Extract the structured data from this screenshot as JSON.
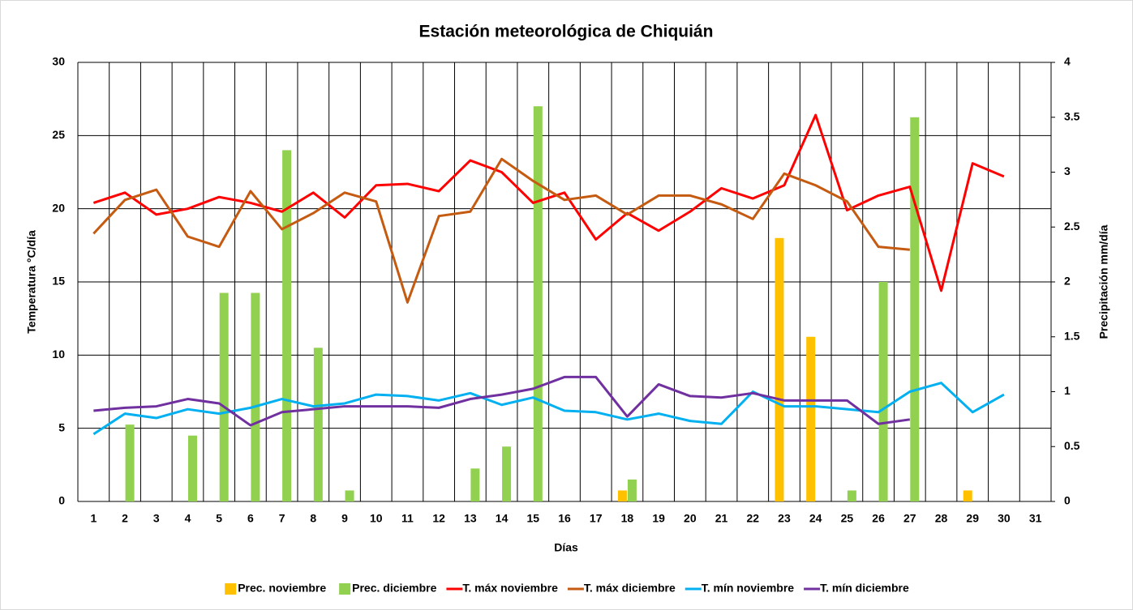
{
  "chart_data": {
    "type": "combo",
    "title": "Estación meteorológica de Chiquián",
    "x_label": "Días",
    "y_label": "Temperatura °C/día",
    "y2_label": "Precipitación mm/día",
    "categories": [
      "1",
      "2",
      "3",
      "4",
      "5",
      "6",
      "7",
      "8",
      "9",
      "10",
      "11",
      "12",
      "13",
      "14",
      "15",
      "16",
      "17",
      "18",
      "19",
      "20",
      "21",
      "22",
      "23",
      "24",
      "25",
      "26",
      "27",
      "28",
      "29",
      "30",
      "31"
    ],
    "ylim": [
      0,
      30
    ],
    "yticks": [
      0,
      5,
      10,
      15,
      20,
      25,
      30
    ],
    "y2lim": [
      0,
      4
    ],
    "y2ticks": [
      0,
      0.5,
      1,
      1.5,
      2,
      2.5,
      3,
      3.5,
      4
    ],
    "grid": true,
    "legend": "bottom",
    "series": [
      {
        "name": "Prec. noviembre",
        "type": "bar",
        "axis": "y2",
        "color": "#ffc000",
        "values": [
          0,
          0,
          0,
          0,
          0,
          0,
          0,
          0,
          0,
          0,
          0,
          0,
          0,
          0,
          0,
          0,
          0,
          0.1,
          0,
          0,
          0,
          0,
          2.4,
          1.5,
          0,
          0,
          0,
          0,
          0.1,
          0,
          0
        ]
      },
      {
        "name": "Prec. diciembre",
        "type": "bar",
        "axis": "y2",
        "color": "#92d050",
        "values": [
          0,
          0.7,
          0,
          0.6,
          1.9,
          1.9,
          3.2,
          1.4,
          0.1,
          0,
          0,
          0,
          0.3,
          0.5,
          3.6,
          0,
          0,
          0.2,
          0,
          0,
          0,
          0,
          0,
          0,
          0.1,
          2.0,
          3.5,
          0,
          0,
          0,
          0
        ]
      },
      {
        "name": "T. máx noviembre",
        "type": "line",
        "color": "#ff0000",
        "values": [
          20.4,
          21.1,
          19.6,
          20.0,
          20.8,
          20.4,
          19.8,
          21.1,
          19.4,
          21.6,
          21.7,
          21.2,
          23.3,
          22.5,
          20.4,
          21.1,
          17.9,
          19.7,
          18.5,
          19.8,
          21.4,
          20.7,
          21.6,
          26.4,
          19.9,
          20.9,
          21.5,
          14.4,
          23.1,
          22.2,
          null
        ]
      },
      {
        "name": "T. máx diciembre",
        "type": "line",
        "color": "#c55a11",
        "values": [
          18.3,
          20.6,
          21.3,
          18.1,
          17.4,
          21.2,
          18.6,
          19.7,
          21.1,
          20.5,
          13.6,
          19.5,
          19.8,
          23.4,
          21.9,
          20.6,
          20.9,
          19.6,
          20.9,
          20.9,
          20.3,
          19.3,
          22.4,
          21.6,
          20.5,
          17.4,
          17.2,
          null,
          null,
          null,
          null
        ]
      },
      {
        "name": "T. mín noviembre",
        "type": "line",
        "color": "#00b0f0",
        "values": [
          4.6,
          6.0,
          5.7,
          6.3,
          6.0,
          6.4,
          7.0,
          6.5,
          6.7,
          7.3,
          7.2,
          6.9,
          7.4,
          6.6,
          7.1,
          6.2,
          6.1,
          5.6,
          6.0,
          5.5,
          5.3,
          7.5,
          6.5,
          6.5,
          6.3,
          6.1,
          7.5,
          8.1,
          6.1,
          7.3,
          null
        ]
      },
      {
        "name": "T. mín diciembre",
        "type": "line",
        "color": "#7030a0",
        "values": [
          6.2,
          6.4,
          6.5,
          7.0,
          6.7,
          5.2,
          6.1,
          6.3,
          6.5,
          6.5,
          6.5,
          6.4,
          7.0,
          7.3,
          7.7,
          8.5,
          8.5,
          5.8,
          8.0,
          7.2,
          7.1,
          7.4,
          6.9,
          6.9,
          6.9,
          5.3,
          5.6,
          null,
          null,
          null,
          null
        ]
      }
    ]
  }
}
